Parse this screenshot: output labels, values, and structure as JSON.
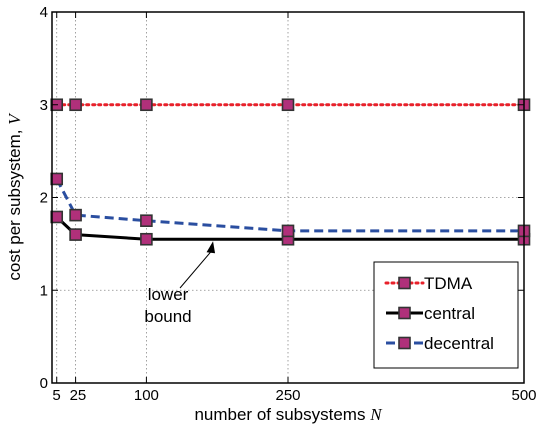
{
  "chart_data": {
    "type": "line",
    "xlabel": "number of subsystems",
    "xlabel_symbol": "N",
    "ylabel": "cost per subsystem,",
    "ylabel_symbol": "V",
    "xlim": [
      0,
      500
    ],
    "ylim": [
      0,
      4
    ],
    "xticks": [
      5,
      25,
      100,
      250,
      500
    ],
    "xtick_labels": [
      "5",
      "25",
      "100",
      "250",
      "500"
    ],
    "yticks": [
      0,
      1,
      2,
      3,
      4
    ],
    "grid": true,
    "legend_position": "bottom-right",
    "series": [
      {
        "name": "TDMA",
        "color": "#e8202a",
        "dash": "dotted",
        "x": [
          5,
          25,
          100,
          250,
          500
        ],
        "y": [
          3.0,
          3.0,
          3.0,
          3.0,
          3.0
        ]
      },
      {
        "name": "central",
        "color": "#000000",
        "dash": "solid",
        "x": [
          5,
          25,
          100,
          250,
          500
        ],
        "y": [
          1.79,
          1.6,
          1.55,
          1.55,
          1.55
        ]
      },
      {
        "name": "decentral",
        "color": "#2a4ea0",
        "dash": "dashed",
        "x": [
          5,
          25,
          100,
          250,
          500
        ],
        "y": [
          2.2,
          1.81,
          1.75,
          1.64,
          1.64
        ]
      }
    ],
    "marker_color": "#b0307a",
    "annotations": [
      {
        "text_lines": [
          "lower",
          "bound"
        ],
        "points_to": [
          160,
          1.55
        ]
      }
    ]
  }
}
